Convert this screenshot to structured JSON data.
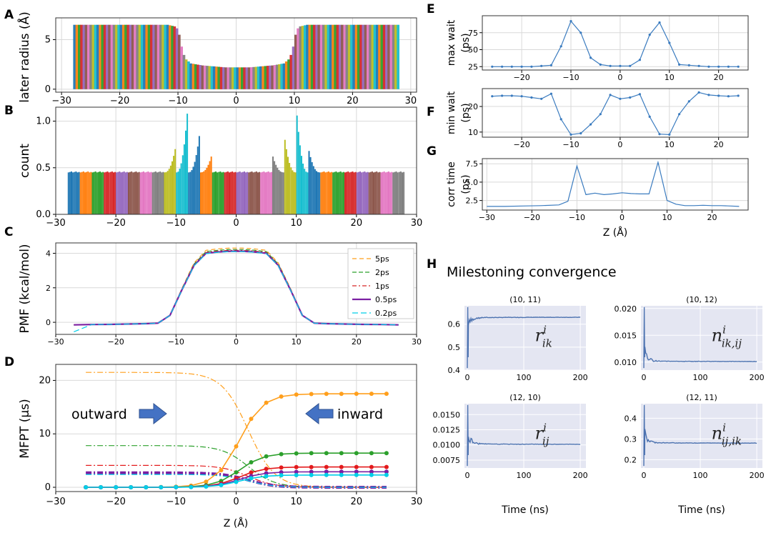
{
  "figure": {
    "colors": {
      "palette": [
        "#1f77b4",
        "#ff7f0e",
        "#2ca02c",
        "#d62728",
        "#9467bd",
        "#8c564b",
        "#e377c2",
        "#7f7f7f",
        "#bcbd22",
        "#17becf"
      ],
      "arrow": "#4472c4",
      "conv_bg": "#e4e6f2",
      "conv_line": "#4c72b0",
      "line_blue": "#3a7bbf"
    }
  },
  "panels": {
    "A": {
      "letter": "A",
      "ylabel": "later radius (Å)"
    },
    "B": {
      "letter": "B",
      "ylabel": "count"
    },
    "C": {
      "letter": "C",
      "ylabel": "PMF (kcal/mol)"
    },
    "D": {
      "letter": "D",
      "ylabel": "MFPT (µs)",
      "xlabel": "Z (Å)",
      "annotations": {
        "outward": "outward",
        "inward": "inward"
      }
    },
    "E": {
      "letter": "E",
      "ylabel_line1": "max wait",
      "ylabel_line2": "(ps)"
    },
    "F": {
      "letter": "F",
      "ylabel_line1": "min wait",
      "ylabel_line2": "(ps)"
    },
    "G": {
      "letter": "G",
      "ylabel_line1": "corr time",
      "ylabel_line2": "(ps)",
      "xlabel": "Z (Å)"
    },
    "H": {
      "letter": "H",
      "title": "Milestoning convergence",
      "xlabel": "Time (ns)"
    }
  },
  "chart_data": [
    {
      "id": "A",
      "type": "area",
      "description_free": true,
      "x": [
        -28,
        -26,
        -24,
        -22,
        -20,
        -18,
        -16,
        -14,
        -12,
        -10.5,
        -10,
        -9.5,
        -9,
        -8,
        -6,
        -4,
        -2,
        0,
        2,
        4,
        6,
        8,
        9,
        9.5,
        10,
        10.5,
        12,
        14,
        16,
        18,
        20,
        22,
        24,
        26,
        28
      ],
      "y": [
        6.5,
        6.5,
        6.5,
        6.5,
        6.5,
        6.5,
        6.5,
        6.5,
        6.5,
        6.3,
        5.5,
        4.0,
        3.1,
        2.6,
        2.4,
        2.3,
        2.2,
        2.2,
        2.2,
        2.3,
        2.4,
        2.6,
        3.1,
        4.0,
        5.5,
        6.3,
        6.5,
        6.5,
        6.5,
        6.5,
        6.5,
        6.5,
        6.5,
        6.5,
        6.5
      ],
      "xlim": [
        -31,
        31
      ],
      "ylim": [
        -0.3,
        7.2
      ],
      "xticks": [
        -30,
        -20,
        -10,
        0,
        10,
        20,
        30
      ],
      "yticks": [
        0,
        5
      ],
      "xticklabels": [
        "−30",
        "−20",
        "−10",
        "0",
        "10",
        "20",
        "30"
      ],
      "yticklabels": [
        "0",
        "5"
      ]
    },
    {
      "id": "B",
      "type": "bar",
      "xlim": [
        -30,
        30
      ],
      "ylim": [
        0,
        1.15
      ],
      "xticks": [
        -30,
        -20,
        -10,
        0,
        10,
        20,
        30
      ],
      "yticks": [
        0.0,
        0.5,
        1.0
      ],
      "xticklabels": [
        "−30",
        "−20",
        "−10",
        "0",
        "10",
        "20",
        "30"
      ],
      "yticklabels": [
        "0.0",
        "0.5",
        "1.0"
      ],
      "baseline": 0.45,
      "peaks": [
        {
          "x": -12,
          "value": 0.7
        },
        {
          "x": -10,
          "value": 1.08
        },
        {
          "x": -8,
          "value": 0.84
        },
        {
          "x": -6,
          "value": 0.62
        },
        {
          "x": 6,
          "value": 0.62
        },
        {
          "x": 8,
          "value": 0.8
        },
        {
          "x": 10,
          "value": 1.06
        },
        {
          "x": 12,
          "value": 0.68
        }
      ]
    },
    {
      "id": "C",
      "type": "line",
      "x": [
        -27,
        -24,
        -21,
        -18,
        -15,
        -13,
        -11,
        -9,
        -7,
        -5,
        -3,
        -1,
        0,
        1,
        3,
        5,
        7,
        9,
        11,
        13,
        15,
        18,
        21,
        24,
        27
      ],
      "series": [
        {
          "name": "5ps",
          "color": "#ff9f1c",
          "dash": "6,4",
          "offset": 0.18
        },
        {
          "name": "2ps",
          "color": "#2ca02c",
          "dash": "6,3",
          "offset": 0.1
        },
        {
          "name": "1ps",
          "color": "#d62728",
          "dash": "6,3,2,3",
          "offset": 0.05
        },
        {
          "name": "0.5ps",
          "color": "#7b1fa2",
          "dash": "",
          "offset": 0.0
        },
        {
          "name": "0.2ps",
          "color": "#00cfe8",
          "dash": "8,4",
          "offset": -0.02
        }
      ],
      "base": [
        -0.15,
        -0.13,
        -0.12,
        -0.1,
        -0.08,
        -0.05,
        0.4,
        1.9,
        3.3,
        4.0,
        4.08,
        4.12,
        4.12,
        4.12,
        4.08,
        4.0,
        3.3,
        1.9,
        0.4,
        -0.05,
        -0.08,
        -0.1,
        -0.12,
        -0.13,
        -0.15
      ],
      "xlim": [
        -30,
        30
      ],
      "ylim": [
        -0.7,
        4.6
      ],
      "xticks": [
        -30,
        -20,
        -10,
        0,
        10,
        20,
        30
      ],
      "yticks": [
        0,
        2,
        4
      ],
      "xticklabels": [
        "−30",
        "−20",
        "−10",
        "0",
        "10",
        "20",
        "30"
      ],
      "yticklabels": [
        "0",
        "2",
        "4"
      ],
      "legend": "top-right"
    },
    {
      "id": "D",
      "type": "line",
      "x": [
        -25,
        -22.5,
        -20,
        -17.5,
        -15,
        -12.5,
        -10,
        -7.5,
        -5,
        -2.5,
        0,
        2.5,
        5,
        7.5,
        10,
        12.5,
        15,
        17.5,
        20,
        22.5,
        25
      ],
      "inward": [
        {
          "name": "5ps",
          "color": "#ff9f1c",
          "final": 17.5
        },
        {
          "name": "2ps",
          "color": "#2ca02c",
          "final": 6.4
        },
        {
          "name": "1ps",
          "color": "#e31a1c",
          "final": 3.8
        },
        {
          "name": "0.5ps",
          "color": "#7b1fa2",
          "final": 2.9
        },
        {
          "name": "0.2ps",
          "color": "#00cfe8",
          "final": 2.3
        }
      ],
      "outward": [
        {
          "name": "5ps",
          "color": "#ff9f1c",
          "start": 21.5
        },
        {
          "name": "2ps",
          "color": "#2ca02c",
          "start": 7.8
        },
        {
          "name": "1ps",
          "color": "#e31a1c",
          "start": 4.1
        },
        {
          "name": "0.5ps",
          "color": "#7b1fa2",
          "start": 2.7
        },
        {
          "name": "0.2ps",
          "color": "#00cfe8",
          "start": 2.4
        }
      ],
      "xlim": [
        -30,
        30
      ],
      "ylim": [
        -0.8,
        23
      ],
      "xticks": [
        -30,
        -20,
        -10,
        0,
        10,
        20,
        30
      ],
      "yticks": [
        0,
        10,
        20
      ],
      "xticklabels": [
        "−30",
        "−20",
        "−10",
        "0",
        "10",
        "20",
        "30"
      ],
      "yticklabels": [
        "0",
        "10",
        "20"
      ]
    },
    {
      "id": "E",
      "type": "line",
      "x": [
        -26,
        -24,
        -22,
        -20,
        -18,
        -16,
        -14,
        -12,
        -10,
        -8,
        -6,
        -4,
        -2,
        0,
        2,
        4,
        6,
        8,
        10,
        12,
        14,
        16,
        18,
        20,
        22,
        24
      ],
      "y": [
        25,
        25,
        25,
        25,
        25,
        26,
        27,
        55,
        92,
        75,
        38,
        28,
        26,
        26,
        26,
        35,
        72,
        90,
        60,
        28,
        27,
        26,
        25,
        25,
        25,
        25
      ],
      "xlim": [
        -28,
        26
      ],
      "ylim": [
        20,
        100
      ],
      "xticks": [
        -20,
        -10,
        0,
        10,
        20
      ],
      "yticks": [
        25,
        50,
        75
      ],
      "xticklabels": [
        "−20",
        "−10",
        "0",
        "10",
        "20"
      ],
      "yticklabels": [
        "25",
        "50",
        "75"
      ]
    },
    {
      "id": "F",
      "type": "line",
      "x": [
        -26,
        -24,
        -22,
        -20,
        -18,
        -16,
        -14,
        -12,
        -10,
        -8,
        -6,
        -4,
        -2,
        0,
        2,
        4,
        6,
        8,
        10,
        12,
        14,
        16,
        18,
        20,
        22,
        24
      ],
      "y": [
        24,
        24.2,
        24.2,
        24,
        23.5,
        23,
        25,
        15,
        9,
        9.5,
        13,
        17,
        24.5,
        23,
        23.5,
        24.8,
        16,
        9.2,
        9,
        17,
        22,
        25.5,
        24.5,
        24.2,
        24,
        24.2
      ],
      "xlim": [
        -28,
        26
      ],
      "ylim": [
        8,
        27
      ],
      "xticks": [
        -20,
        -10,
        0,
        10,
        20
      ],
      "yticks": [
        10,
        20
      ],
      "xticklabels": [
        "−20",
        "−10",
        "0",
        "10",
        "20"
      ],
      "yticklabels": [
        "10",
        "20"
      ]
    },
    {
      "id": "G",
      "type": "line",
      "x": [
        -30,
        -26,
        -22,
        -18,
        -14,
        -12,
        -10,
        -8,
        -6,
        -4,
        -2,
        0,
        2,
        4,
        6,
        8,
        10,
        12,
        14,
        16,
        18,
        20,
        22,
        24,
        26
      ],
      "y": [
        1.7,
        1.7,
        1.75,
        1.8,
        1.9,
        2.4,
        7.2,
        3.3,
        3.5,
        3.3,
        3.4,
        3.55,
        3.45,
        3.4,
        3.4,
        7.7,
        2.5,
        2.0,
        1.8,
        1.8,
        1.85,
        1.8,
        1.8,
        1.75,
        1.7
      ],
      "xlim": [
        -31,
        28
      ],
      "ylim": [
        1.2,
        8.2
      ],
      "xticks": [
        -30,
        -20,
        -10,
        0,
        10,
        20
      ],
      "yticks": [
        2.5,
        5.0,
        7.5
      ],
      "xticklabels": [
        "−30",
        "−20",
        "−10",
        "0",
        "10",
        "20"
      ],
      "yticklabels": [
        "2.5",
        "5.0",
        "7.5"
      ]
    },
    {
      "id": "H1",
      "type": "line",
      "title": "(10, 11)",
      "symbol_main": "r",
      "symbol_sup": "i",
      "symbol_sub": "ik",
      "xlim": [
        -5,
        210
      ],
      "ylim": [
        0.4,
        0.68
      ],
      "xticks": [
        0,
        100,
        200
      ],
      "yticks": [
        0.4,
        0.5,
        0.6
      ],
      "final": 0.63,
      "xticklabels": [
        "0",
        "100",
        "200"
      ],
      "yticklabels": [
        "0.4",
        "0.5",
        "0.6"
      ]
    },
    {
      "id": "H2",
      "type": "line",
      "title": "(10, 12)",
      "symbol_main": "n",
      "symbol_sup": "i",
      "symbol_sub": "ik,ij",
      "xlim": [
        -5,
        210
      ],
      "ylim": [
        0.0085,
        0.0205
      ],
      "xticks": [
        0,
        100,
        200
      ],
      "yticks": [
        0.01,
        0.015,
        0.02
      ],
      "final": 0.0101,
      "xticklabels": [
        "0",
        "100",
        "200"
      ],
      "yticklabels": [
        "0.010",
        "0.015",
        "0.020"
      ]
    },
    {
      "id": "H3",
      "type": "line",
      "title": "(12, 10)",
      "symbol_main": "r",
      "symbol_sup": "i",
      "symbol_sub": "ij",
      "xlim": [
        -5,
        210
      ],
      "ylim": [
        0.0062,
        0.0168
      ],
      "xticks": [
        0,
        100,
        200
      ],
      "yticks": [
        0.0075,
        0.01,
        0.0125,
        0.015
      ],
      "final": 0.0101,
      "xticklabels": [
        "0",
        "100",
        "200"
      ],
      "yticklabels": [
        "0.0075",
        "0.0100",
        "0.0125",
        "0.0150"
      ]
    },
    {
      "id": "H4",
      "type": "line",
      "title": "(12, 11)",
      "symbol_main": "n",
      "symbol_sup": "i",
      "symbol_sub": "ij,ik",
      "xlim": [
        -5,
        210
      ],
      "ylim": [
        0.16,
        0.47
      ],
      "xticks": [
        0,
        100,
        200
      ],
      "yticks": [
        0.2,
        0.3,
        0.4
      ],
      "final": 0.28,
      "xticklabels": [
        "0",
        "100",
        "200"
      ],
      "yticklabels": [
        "0.2",
        "0.3",
        "0.4"
      ]
    }
  ]
}
